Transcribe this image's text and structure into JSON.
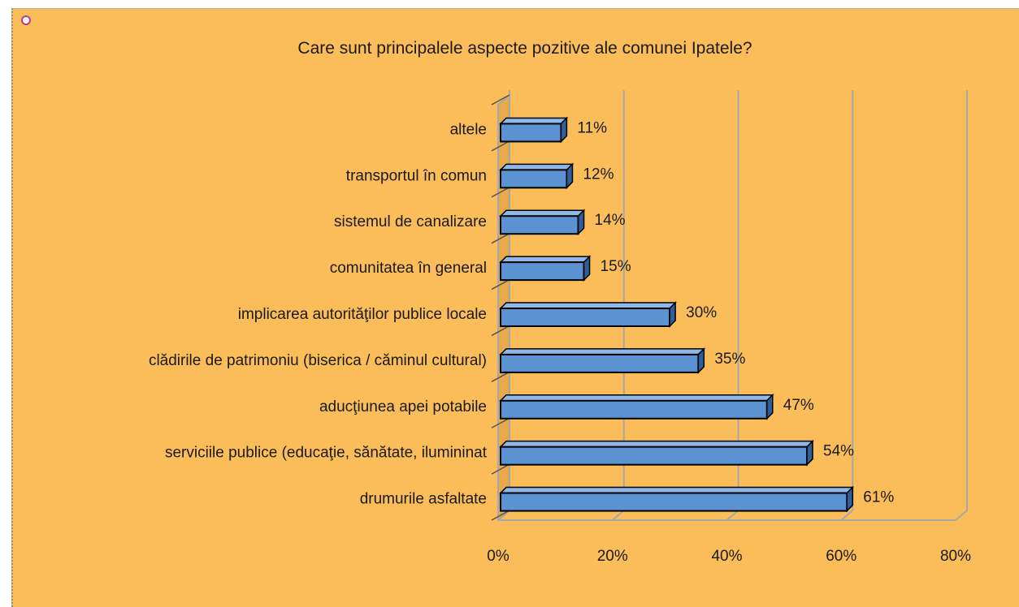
{
  "chart_data": {
    "type": "bar",
    "orientation": "horizontal",
    "title": "Care sunt principalele aspecte pozitive ale comunei Ipatele?",
    "categories": [
      "altele",
      "transportul în comun",
      "sistemul de canalizare",
      "comunitatea în general",
      "implicarea autorităţilor publice locale",
      "clădirile de patrimoniu (biserica / căminul cultural)",
      "aducţiunea apei potabile",
      "serviciile publice (educaţie, sănătate, ilumininat",
      "drumurile asfaltate"
    ],
    "values": [
      11,
      12,
      14,
      15,
      30,
      35,
      47,
      54,
      61
    ],
    "value_labels": [
      "11%",
      "12%",
      "14%",
      "15%",
      "30%",
      "35%",
      "47%",
      "54%",
      "61%"
    ],
    "x_ticks": [
      "0%",
      "20%",
      "40%",
      "60%",
      "80%"
    ],
    "xlim": [
      0,
      80
    ],
    "xlabel": "",
    "ylabel": "",
    "grid": true,
    "legend": "none"
  },
  "colors": {
    "background": "#fbbd59",
    "bar_face": "#5b92d2",
    "bar_top": "#8fb8e8",
    "bar_side": "#2f5e9a",
    "gridline": "#a7a7a7",
    "text": "#1a1a1a"
  }
}
